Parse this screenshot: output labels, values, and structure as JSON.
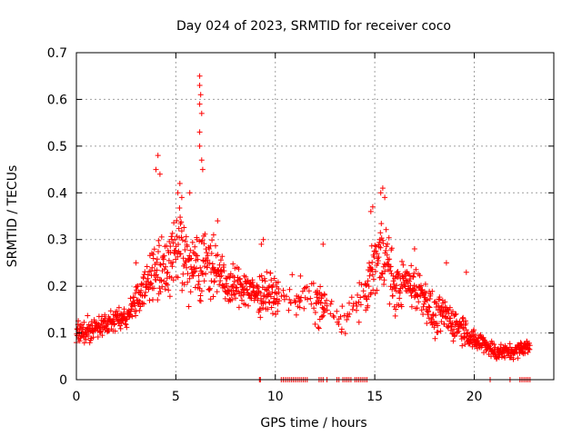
{
  "chart_data": {
    "type": "scatter",
    "title": "Day 024 of 2023, SRMTID for receiver coco",
    "xlabel": "GPS time / hours",
    "ylabel": "SRMTID / TECUs",
    "xlim": [
      0,
      24
    ],
    "ylim": [
      0,
      0.7
    ],
    "x_ticks": [
      0,
      5,
      10,
      15,
      20
    ],
    "x_tick_labels": [
      "0",
      "5",
      "10",
      "15",
      "20"
    ],
    "y_ticks": [
      0,
      0.1,
      0.2,
      0.3,
      0.4,
      0.5,
      0.6,
      0.7
    ],
    "y_tick_labels": [
      "0",
      "0.1",
      "0.2",
      "0.3",
      "0.4",
      "0.5",
      "0.6",
      "0.7"
    ],
    "grid": true,
    "marker": "plus",
    "color": "#ff0000",
    "series": [
      {
        "name": "SRMTID",
        "profile": [
          [
            0.0,
            0.1,
            0.02
          ],
          [
            0.5,
            0.1,
            0.025
          ],
          [
            1.0,
            0.11,
            0.02
          ],
          [
            1.5,
            0.12,
            0.02
          ],
          [
            2.0,
            0.13,
            0.025
          ],
          [
            2.5,
            0.13,
            0.02
          ],
          [
            3.0,
            0.17,
            0.035
          ],
          [
            3.5,
            0.2,
            0.04
          ],
          [
            4.0,
            0.24,
            0.07
          ],
          [
            4.5,
            0.22,
            0.07
          ],
          [
            5.0,
            0.3,
            0.08
          ],
          [
            5.5,
            0.25,
            0.07
          ],
          [
            6.0,
            0.25,
            0.09
          ],
          [
            6.5,
            0.25,
            0.06
          ],
          [
            7.0,
            0.24,
            0.05
          ],
          [
            7.5,
            0.2,
            0.04
          ],
          [
            8.0,
            0.2,
            0.04
          ],
          [
            8.5,
            0.2,
            0.04
          ],
          [
            9.0,
            0.18,
            0.035
          ],
          [
            9.5,
            0.19,
            0.05
          ],
          [
            10.0,
            0.18,
            0.03
          ],
          [
            12.0,
            0.17,
            0.05
          ],
          [
            12.5,
            0.15,
            0.04
          ],
          [
            13.5,
            0.13,
            0.03
          ],
          [
            14.5,
            0.18,
            0.04
          ],
          [
            15.0,
            0.25,
            0.07
          ],
          [
            15.5,
            0.28,
            0.08
          ],
          [
            16.0,
            0.19,
            0.05
          ],
          [
            16.5,
            0.21,
            0.04
          ],
          [
            17.0,
            0.2,
            0.05
          ],
          [
            17.5,
            0.18,
            0.04
          ],
          [
            18.0,
            0.13,
            0.04
          ],
          [
            18.5,
            0.14,
            0.04
          ],
          [
            19.0,
            0.12,
            0.035
          ],
          [
            19.5,
            0.11,
            0.03
          ],
          [
            20.0,
            0.08,
            0.02
          ],
          [
            20.5,
            0.08,
            0.02
          ],
          [
            21.0,
            0.06,
            0.02
          ],
          [
            21.5,
            0.06,
            0.015
          ],
          [
            22.0,
            0.06,
            0.015
          ],
          [
            22.5,
            0.07,
            0.015
          ],
          [
            22.8,
            0.07,
            0.015
          ]
        ],
        "density_gaps": [
          [
            10.2,
            12.0
          ],
          [
            12.5,
            14.5
          ]
        ],
        "peaks": [
          [
            4.1,
            0.48
          ],
          [
            4.0,
            0.45
          ],
          [
            4.2,
            0.44
          ],
          [
            5.2,
            0.42
          ],
          [
            5.1,
            0.4
          ],
          [
            5.3,
            0.39
          ],
          [
            5.7,
            0.4
          ],
          [
            6.2,
            0.65
          ],
          [
            6.2,
            0.63
          ],
          [
            6.25,
            0.61
          ],
          [
            6.2,
            0.59
          ],
          [
            6.3,
            0.57
          ],
          [
            6.2,
            0.53
          ],
          [
            6.2,
            0.5
          ],
          [
            6.3,
            0.47
          ],
          [
            6.35,
            0.45
          ],
          [
            15.4,
            0.41
          ],
          [
            15.3,
            0.4
          ],
          [
            15.5,
            0.39
          ],
          [
            14.9,
            0.37
          ],
          [
            14.8,
            0.36
          ],
          [
            12.4,
            0.29
          ],
          [
            9.4,
            0.3
          ],
          [
            9.3,
            0.29
          ],
          [
            17.0,
            0.28
          ],
          [
            18.6,
            0.25
          ],
          [
            19.6,
            0.23
          ],
          [
            7.1,
            0.34
          ],
          [
            6.9,
            0.31
          ],
          [
            3.0,
            0.25
          ]
        ],
        "zero_values_at": [
          9.2,
          9.25,
          10.3,
          10.4,
          10.5,
          10.6,
          10.7,
          10.8,
          10.9,
          11.0,
          11.1,
          11.2,
          11.3,
          11.4,
          11.5,
          11.6,
          12.2,
          12.3,
          12.4,
          12.6,
          13.1,
          13.2,
          13.4,
          13.5,
          13.6,
          13.7,
          13.8,
          14.0,
          14.1,
          14.2,
          14.3,
          14.4,
          14.5,
          14.6,
          20.8,
          21.8,
          22.3,
          22.4,
          22.5,
          22.6,
          22.7,
          22.8
        ]
      }
    ]
  }
}
